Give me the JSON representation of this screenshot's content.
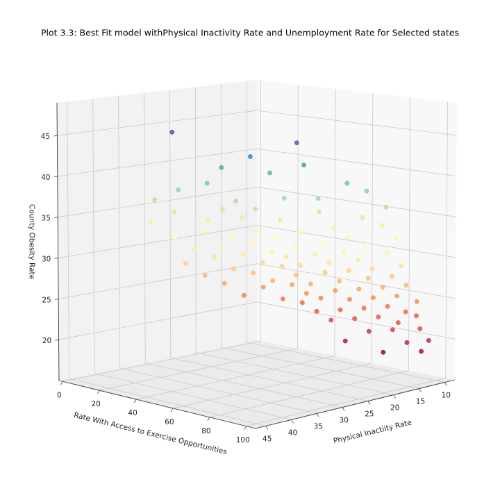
{
  "chart_data": {
    "type": "scatter3d",
    "title": "Plot 3.3: Best Fit model withPhysical Inactivity Rate and Unemployment Rate for Selected states",
    "xlabel": "Rate With Access to Exercise Opportunities",
    "ylabel": "Physical Inactiity Rate",
    "zlabel": "County Obesity Rate",
    "xlim": [
      -2,
      105
    ],
    "ylim": [
      8,
      47
    ],
    "zlim": [
      15,
      49
    ],
    "xticks": [
      0,
      20,
      40,
      60,
      80,
      100
    ],
    "yticks": [
      10,
      15,
      20,
      25,
      30,
      35,
      40,
      45
    ],
    "zticks": [
      20,
      25,
      30,
      35,
      40,
      45
    ],
    "grid": true,
    "colormap": [
      "#9e0142",
      "#d53e4f",
      "#f46d43",
      "#fdae61",
      "#fee08b",
      "#ffffbf",
      "#e6f598",
      "#abdda4",
      "#66c2a5",
      "#3288bd",
      "#5e4fa2"
    ],
    "clim": [
      18,
      46
    ],
    "x": [
      35,
      80,
      55,
      70,
      45,
      60,
      85,
      40,
      90,
      30,
      65,
      75,
      50,
      20,
      95,
      55,
      40,
      70,
      85,
      25,
      60,
      45,
      90,
      35,
      75,
      15,
      65,
      50,
      80,
      30,
      95,
      55,
      40,
      70,
      20,
      85,
      60,
      45,
      75,
      35,
      90,
      50,
      65,
      25,
      80,
      55,
      40,
      95,
      70,
      30,
      60,
      85,
      45,
      75,
      20,
      50,
      90,
      65,
      35,
      80,
      55,
      40,
      95,
      70,
      25,
      60,
      85,
      45,
      75,
      50,
      30,
      90,
      65,
      40,
      80,
      55,
      98,
      70,
      35,
      60,
      85,
      45,
      92,
      75,
      50,
      65,
      95,
      80,
      55,
      88,
      70,
      97,
      60,
      85,
      75,
      99,
      90,
      65,
      95,
      80
    ],
    "y": [
      38,
      30,
      30,
      25,
      32,
      28,
      22,
      33,
      20,
      35,
      27,
      24,
      31,
      36,
      18,
      29,
      30,
      22,
      19,
      34,
      26,
      28,
      17,
      31,
      21,
      35,
      24,
      27,
      20,
      30,
      16,
      25,
      28,
      21,
      32,
      18,
      23,
      26,
      19,
      28,
      16,
      24,
      21,
      30,
      18,
      23,
      26,
      15,
      20,
      28,
      22,
      17,
      24,
      18,
      30,
      22,
      15,
      19,
      26,
      16,
      21,
      24,
      14,
      18,
      28,
      20,
      15,
      22,
      16,
      20,
      26,
      14,
      17,
      22,
      15,
      19,
      13,
      16,
      24,
      18,
      14,
      20,
      13,
      15,
      18,
      16,
      12,
      14,
      17,
      13,
      15,
      12,
      16,
      13,
      14,
      11,
      12,
      15,
      11,
      13
    ],
    "z": [
      46,
      45.5,
      43,
      42,
      41.5,
      41,
      40,
      39.5,
      39,
      38.5,
      38,
      38,
      37.5,
      37,
      37,
      36.5,
      36,
      36,
      35.5,
      35.5,
      35,
      35,
      34.5,
      34.5,
      34,
      34,
      33.5,
      33.5,
      33,
      33,
      33,
      32.5,
      32.5,
      32,
      32,
      32,
      31.5,
      31.5,
      31,
      31,
      31,
      30.5,
      30.5,
      30.5,
      30,
      30,
      30,
      29.5,
      29.5,
      29.5,
      29,
      29,
      29,
      28.5,
      28.5,
      28.5,
      28,
      28,
      28,
      27.5,
      27.5,
      27.5,
      27,
      27,
      27,
      26.5,
      26.5,
      26.5,
      26,
      26,
      26,
      25.5,
      25.5,
      25.5,
      25,
      25,
      25,
      24.5,
      24.5,
      24.5,
      24,
      24,
      23.5,
      23.5,
      23.5,
      23,
      23,
      22.5,
      22.5,
      22,
      22,
      21.5,
      21.5,
      21,
      20.5,
      20,
      19.5,
      19,
      18.5,
      18
    ]
  }
}
